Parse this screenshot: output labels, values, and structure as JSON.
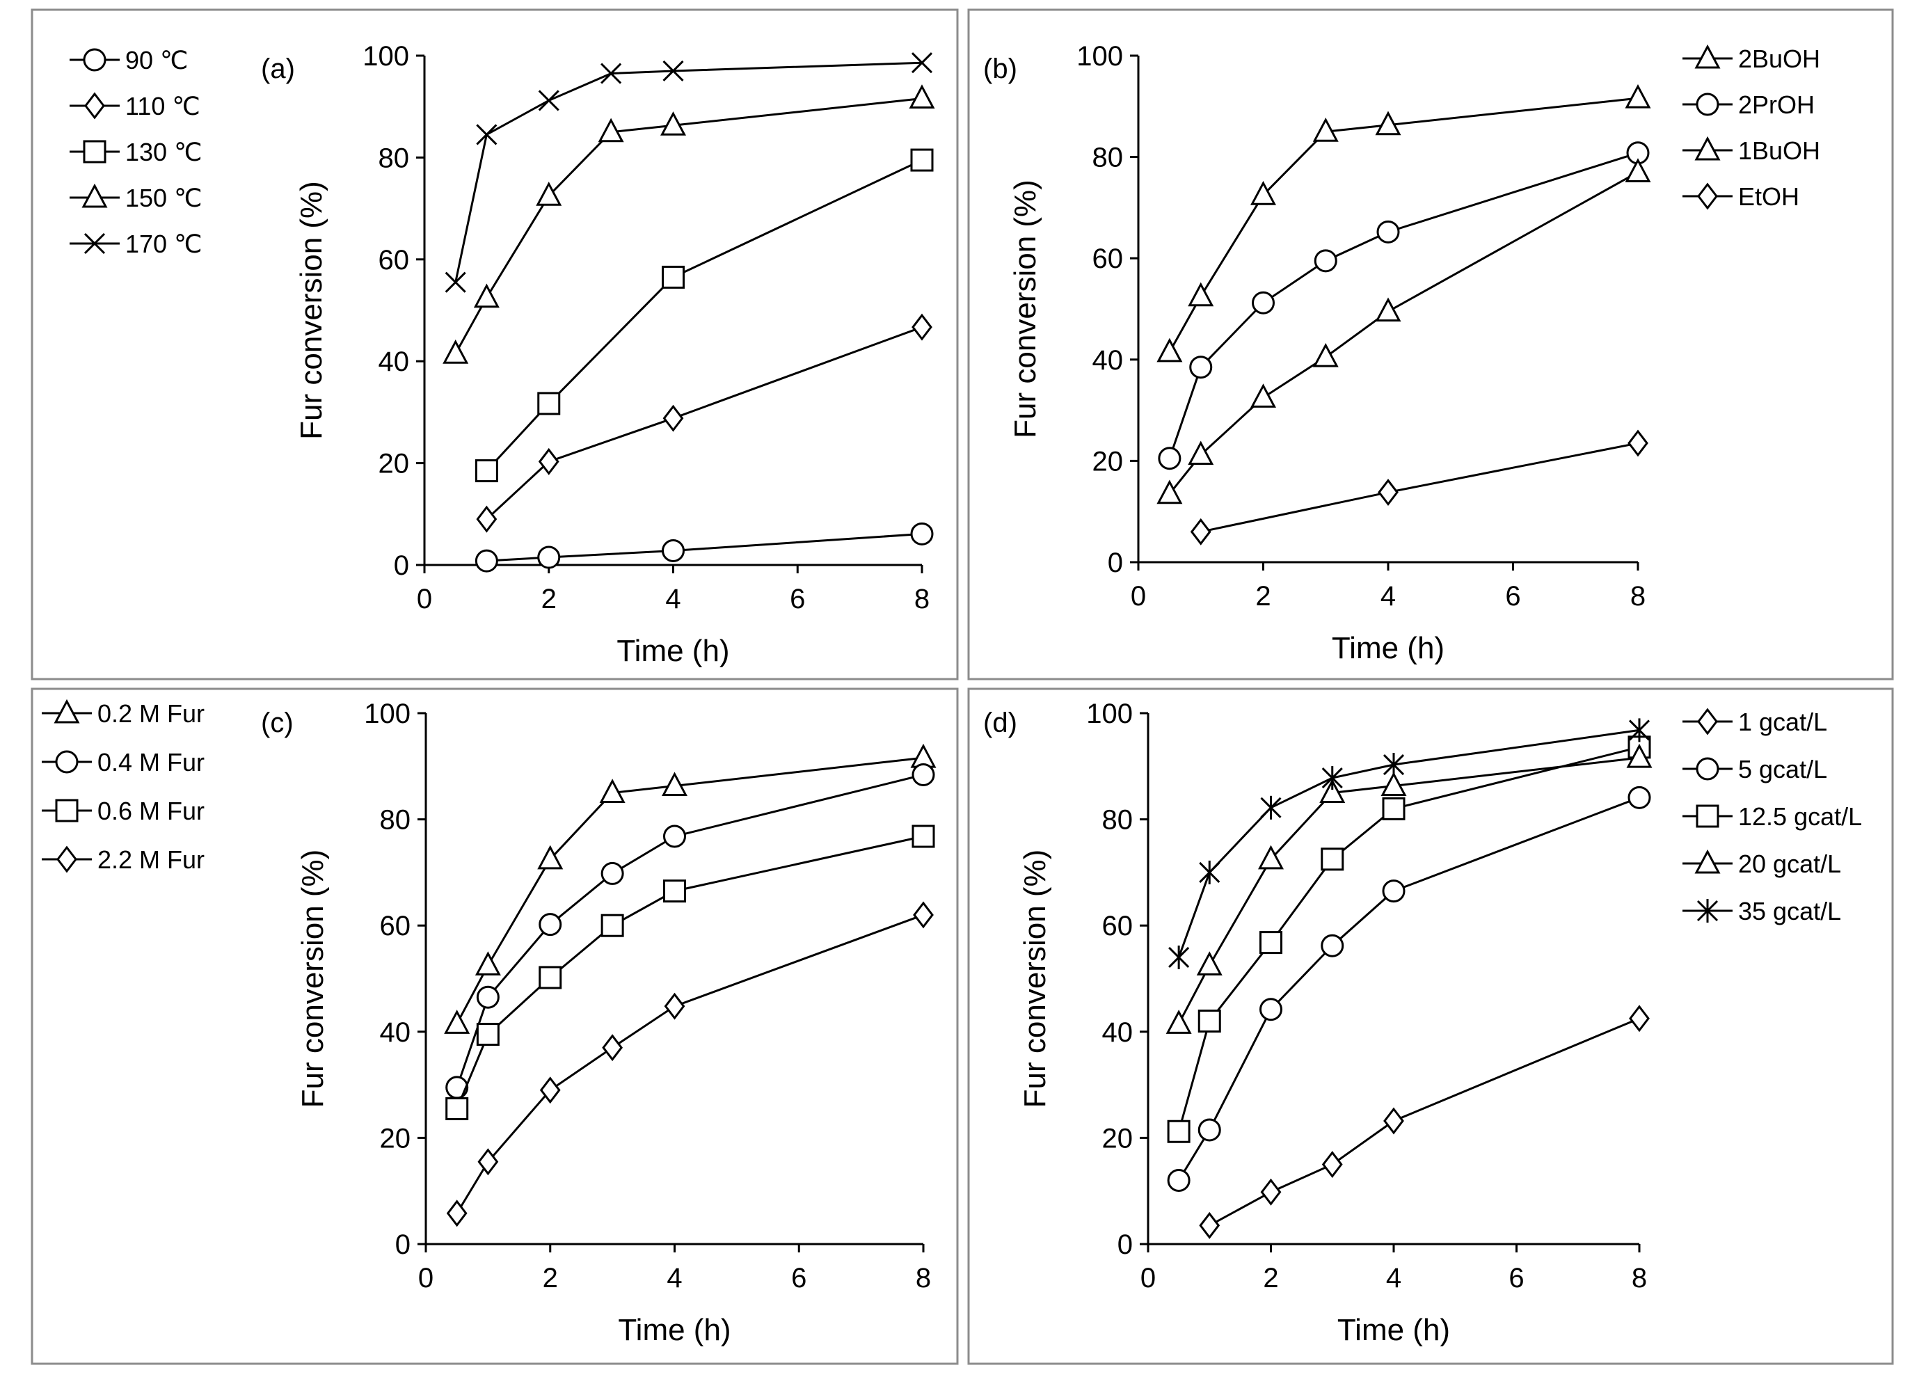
{
  "figure": {
    "panels": [
      "a",
      "b",
      "c",
      "d"
    ]
  },
  "chart_data": [
    {
      "panel": "(a)",
      "type": "line",
      "xlabel": "Time (h)",
      "ylabel": "Fur conversion (%)",
      "xlim": [
        0,
        8
      ],
      "ylim": [
        0,
        100
      ],
      "xticks": [
        0,
        2,
        4,
        6,
        8
      ],
      "yticks": [
        0,
        20,
        40,
        60,
        80,
        100
      ],
      "legend_position": "left",
      "series": [
        {
          "name": "90 ℃",
          "marker": "circle",
          "x": [
            1,
            2,
            4,
            8
          ],
          "y": [
            0.8,
            1.5,
            2.8,
            6.1
          ]
        },
        {
          "name": "110 ℃",
          "marker": "diamond",
          "x": [
            1,
            2,
            4,
            8
          ],
          "y": [
            9,
            20.3,
            28.8,
            46.7
          ]
        },
        {
          "name": "130 ℃",
          "marker": "square",
          "x": [
            1,
            2,
            4,
            8
          ],
          "y": [
            18.5,
            31.7,
            56.5,
            79.5
          ]
        },
        {
          "name": "150 ℃",
          "marker": "triangle",
          "x": [
            0.5,
            1,
            2,
            3,
            4,
            8
          ],
          "y": [
            41.5,
            52.5,
            72.5,
            85,
            86.3,
            91.6
          ]
        },
        {
          "name": "170 ℃",
          "marker": "x",
          "x": [
            0.5,
            1,
            2,
            3,
            4,
            8
          ],
          "y": [
            55.5,
            84.5,
            91.2,
            96.5,
            97,
            98.6
          ]
        }
      ]
    },
    {
      "panel": "(b)",
      "type": "line",
      "xlabel": "Time (h)",
      "ylabel": "Fur conversion (%)",
      "xlim": [
        0,
        8
      ],
      "ylim": [
        0,
        100
      ],
      "xticks": [
        0,
        2,
        4,
        6,
        8
      ],
      "yticks": [
        0,
        20,
        40,
        60,
        80,
        100
      ],
      "legend_position": "right",
      "series": [
        {
          "name": "2BuOH",
          "marker": "triangle",
          "x": [
            0.5,
            1,
            2,
            3,
            4,
            8
          ],
          "y": [
            41.5,
            52.5,
            72.5,
            85,
            86.3,
            91.6
          ]
        },
        {
          "name": "2PrOH",
          "marker": "circle",
          "x": [
            0.5,
            1,
            2,
            3,
            4,
            8
          ],
          "y": [
            20.5,
            38.5,
            51.2,
            59.5,
            65.2,
            80.8
          ]
        },
        {
          "name": "1BuOH",
          "marker": "triangle",
          "x": [
            0.5,
            1,
            2,
            3,
            4,
            8
          ],
          "y": [
            13.5,
            21.2,
            32.5,
            40.5,
            49.5,
            77
          ]
        },
        {
          "name": "EtOH",
          "marker": "diamond",
          "x": [
            1,
            4,
            8
          ],
          "y": [
            6,
            13.8,
            23.5
          ]
        }
      ]
    },
    {
      "panel": "(c)",
      "type": "line",
      "xlabel": "Time (h)",
      "ylabel": "Fur conversion (%)",
      "xlim": [
        0,
        8
      ],
      "ylim": [
        0,
        100
      ],
      "xticks": [
        0,
        2,
        4,
        6,
        8
      ],
      "yticks": [
        0,
        20,
        40,
        60,
        80,
        100
      ],
      "legend_position": "left",
      "series": [
        {
          "name": "0.2 M Fur",
          "marker": "triangle",
          "x": [
            0.5,
            1,
            2,
            3,
            4,
            8
          ],
          "y": [
            41.5,
            52.5,
            72.5,
            85,
            86.3,
            91.6
          ]
        },
        {
          "name": "0.4 M Fur",
          "marker": "circle",
          "x": [
            0.5,
            1,
            2,
            3,
            4,
            8
          ],
          "y": [
            29.5,
            46.5,
            60.2,
            69.8,
            76.8,
            88.4
          ]
        },
        {
          "name": "0.6 M Fur",
          "marker": "square",
          "x": [
            0.5,
            1,
            2,
            3,
            4,
            8
          ],
          "y": [
            25.5,
            39.5,
            50.2,
            60,
            66.5,
            76.8
          ]
        },
        {
          "name": "2.2 M Fur",
          "marker": "diamond",
          "x": [
            0.5,
            1,
            2,
            3,
            4,
            8
          ],
          "y": [
            5.8,
            15.5,
            29,
            37,
            44.8,
            62
          ]
        }
      ]
    },
    {
      "panel": "(d)",
      "type": "line",
      "xlabel": "Time (h)",
      "ylabel": "Fur conversion (%)",
      "xlim": [
        0,
        8
      ],
      "ylim": [
        0,
        100
      ],
      "xticks": [
        0,
        2,
        4,
        6,
        8
      ],
      "yticks": [
        0,
        20,
        40,
        60,
        80,
        100
      ],
      "legend_position": "right",
      "series": [
        {
          "name": "1 gcat/L",
          "marker": "diamond",
          "x": [
            1,
            2,
            3,
            4,
            8
          ],
          "y": [
            3.5,
            9.8,
            15,
            23.2,
            42.5
          ]
        },
        {
          "name": "5 gcat/L",
          "marker": "circle",
          "x": [
            0.5,
            1,
            2,
            3,
            4,
            8
          ],
          "y": [
            12,
            21.5,
            44.2,
            56.2,
            66.5,
            84.1
          ]
        },
        {
          "name": "12.5 gcat/L",
          "marker": "square",
          "x": [
            0.5,
            1,
            2,
            3,
            4,
            8
          ],
          "y": [
            21.2,
            42,
            56.8,
            72.5,
            82,
            93.6
          ]
        },
        {
          "name": "20 gcat/L",
          "marker": "triangle",
          "x": [
            0.5,
            1,
            2,
            3,
            4,
            8
          ],
          "y": [
            41.5,
            52.5,
            72.5,
            85,
            86.3,
            91.6
          ]
        },
        {
          "name": "35 gcat/L",
          "marker": "star",
          "x": [
            0.5,
            1,
            2,
            3,
            4,
            8
          ],
          "y": [
            54,
            70,
            82.2,
            87.8,
            90.3,
            96.8
          ]
        }
      ]
    }
  ]
}
